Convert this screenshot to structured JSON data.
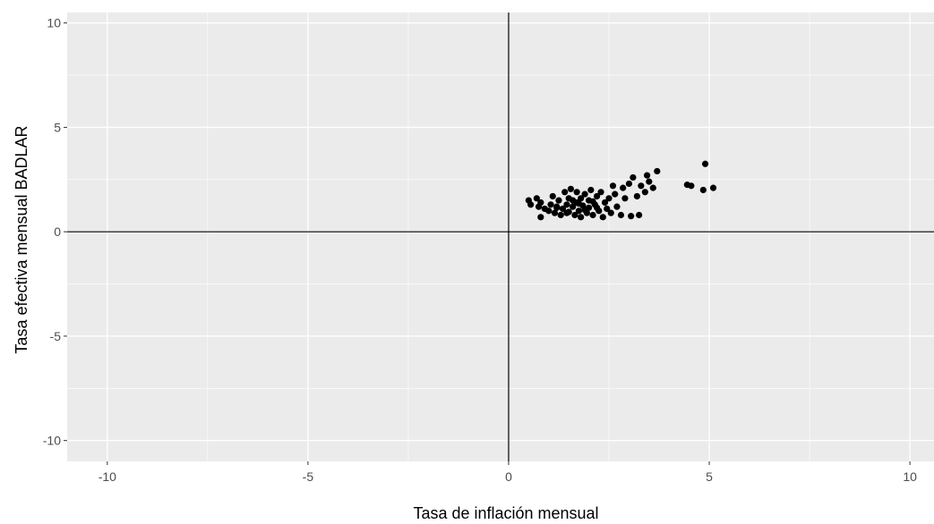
{
  "chart_data": {
    "type": "scatter",
    "title": "",
    "xlabel": "Tasa de inflación mensual",
    "ylabel": "Tasa efectiva mensual BADLAR",
    "xlim": [
      -11,
      10.6
    ],
    "ylim": [
      -11,
      10.5
    ],
    "x_ticks": [
      -10,
      -5,
      0,
      5,
      10
    ],
    "y_ticks": [
      -10,
      -5,
      0,
      5,
      10
    ],
    "x_tick_labels": [
      "-10",
      "-5",
      "0",
      "5",
      "10"
    ],
    "y_tick_labels": [
      "-10",
      "-5",
      "0",
      "5",
      "10"
    ],
    "grid": true,
    "reference_lines": {
      "x": 0,
      "y": 0
    },
    "colors": {
      "panel": "#ebebeb",
      "grid": "#ffffff",
      "point": "#000000",
      "reference_line": "#000000",
      "tick_label": "#4d4d4d"
    },
    "points": [
      [
        0.5,
        1.5
      ],
      [
        0.55,
        1.3
      ],
      [
        0.7,
        1.6
      ],
      [
        0.75,
        1.2
      ],
      [
        0.8,
        1.4
      ],
      [
        0.8,
        0.7
      ],
      [
        0.9,
        1.1
      ],
      [
        1.0,
        1.0
      ],
      [
        1.05,
        1.3
      ],
      [
        1.1,
        1.7
      ],
      [
        1.15,
        0.9
      ],
      [
        1.2,
        1.2
      ],
      [
        1.25,
        1.5
      ],
      [
        1.3,
        0.8
      ],
      [
        1.35,
        1.1
      ],
      [
        1.4,
        1.9
      ],
      [
        1.45,
        1.3
      ],
      [
        1.5,
        0.95
      ],
      [
        1.5,
        1.6
      ],
      [
        1.55,
        2.05
      ],
      [
        1.6,
        1.2
      ],
      [
        1.65,
        0.8
      ],
      [
        1.7,
        1.4
      ],
      [
        1.7,
        1.9
      ],
      [
        1.75,
        1.0
      ],
      [
        1.8,
        1.6
      ],
      [
        1.8,
        0.7
      ],
      [
        1.85,
        1.25
      ],
      [
        1.9,
        1.8
      ],
      [
        1.95,
        0.9
      ],
      [
        2.0,
        1.5
      ],
      [
        2.0,
        1.15
      ],
      [
        2.05,
        2.0
      ],
      [
        2.1,
        0.8
      ],
      [
        2.15,
        1.3
      ],
      [
        2.2,
        1.7
      ],
      [
        2.25,
        1.0
      ],
      [
        2.3,
        1.9
      ],
      [
        2.35,
        0.7
      ],
      [
        2.4,
        1.4
      ],
      [
        2.45,
        1.1
      ],
      [
        2.5,
        1.6
      ],
      [
        2.55,
        0.9
      ],
      [
        2.6,
        2.2
      ],
      [
        2.65,
        1.8
      ],
      [
        2.7,
        1.2
      ],
      [
        2.8,
        0.8
      ],
      [
        2.85,
        2.1
      ],
      [
        2.9,
        1.6
      ],
      [
        3.0,
        2.3
      ],
      [
        3.05,
        0.75
      ],
      [
        3.1,
        2.6
      ],
      [
        3.2,
        1.7
      ],
      [
        3.25,
        0.8
      ],
      [
        3.3,
        2.2
      ],
      [
        3.4,
        1.9
      ],
      [
        3.45,
        2.7
      ],
      [
        3.5,
        2.4
      ],
      [
        3.6,
        2.1
      ],
      [
        3.7,
        2.9
      ],
      [
        4.45,
        2.25
      ],
      [
        4.55,
        2.2
      ],
      [
        4.85,
        2.0
      ],
      [
        4.9,
        3.25
      ],
      [
        5.1,
        2.1
      ],
      [
        1.2,
        1.15
      ],
      [
        1.45,
        0.9
      ],
      [
        1.6,
        1.5
      ],
      [
        1.75,
        1.35
      ],
      [
        1.9,
        1.05
      ],
      [
        2.1,
        1.45
      ],
      [
        2.2,
        1.15
      ]
    ]
  }
}
